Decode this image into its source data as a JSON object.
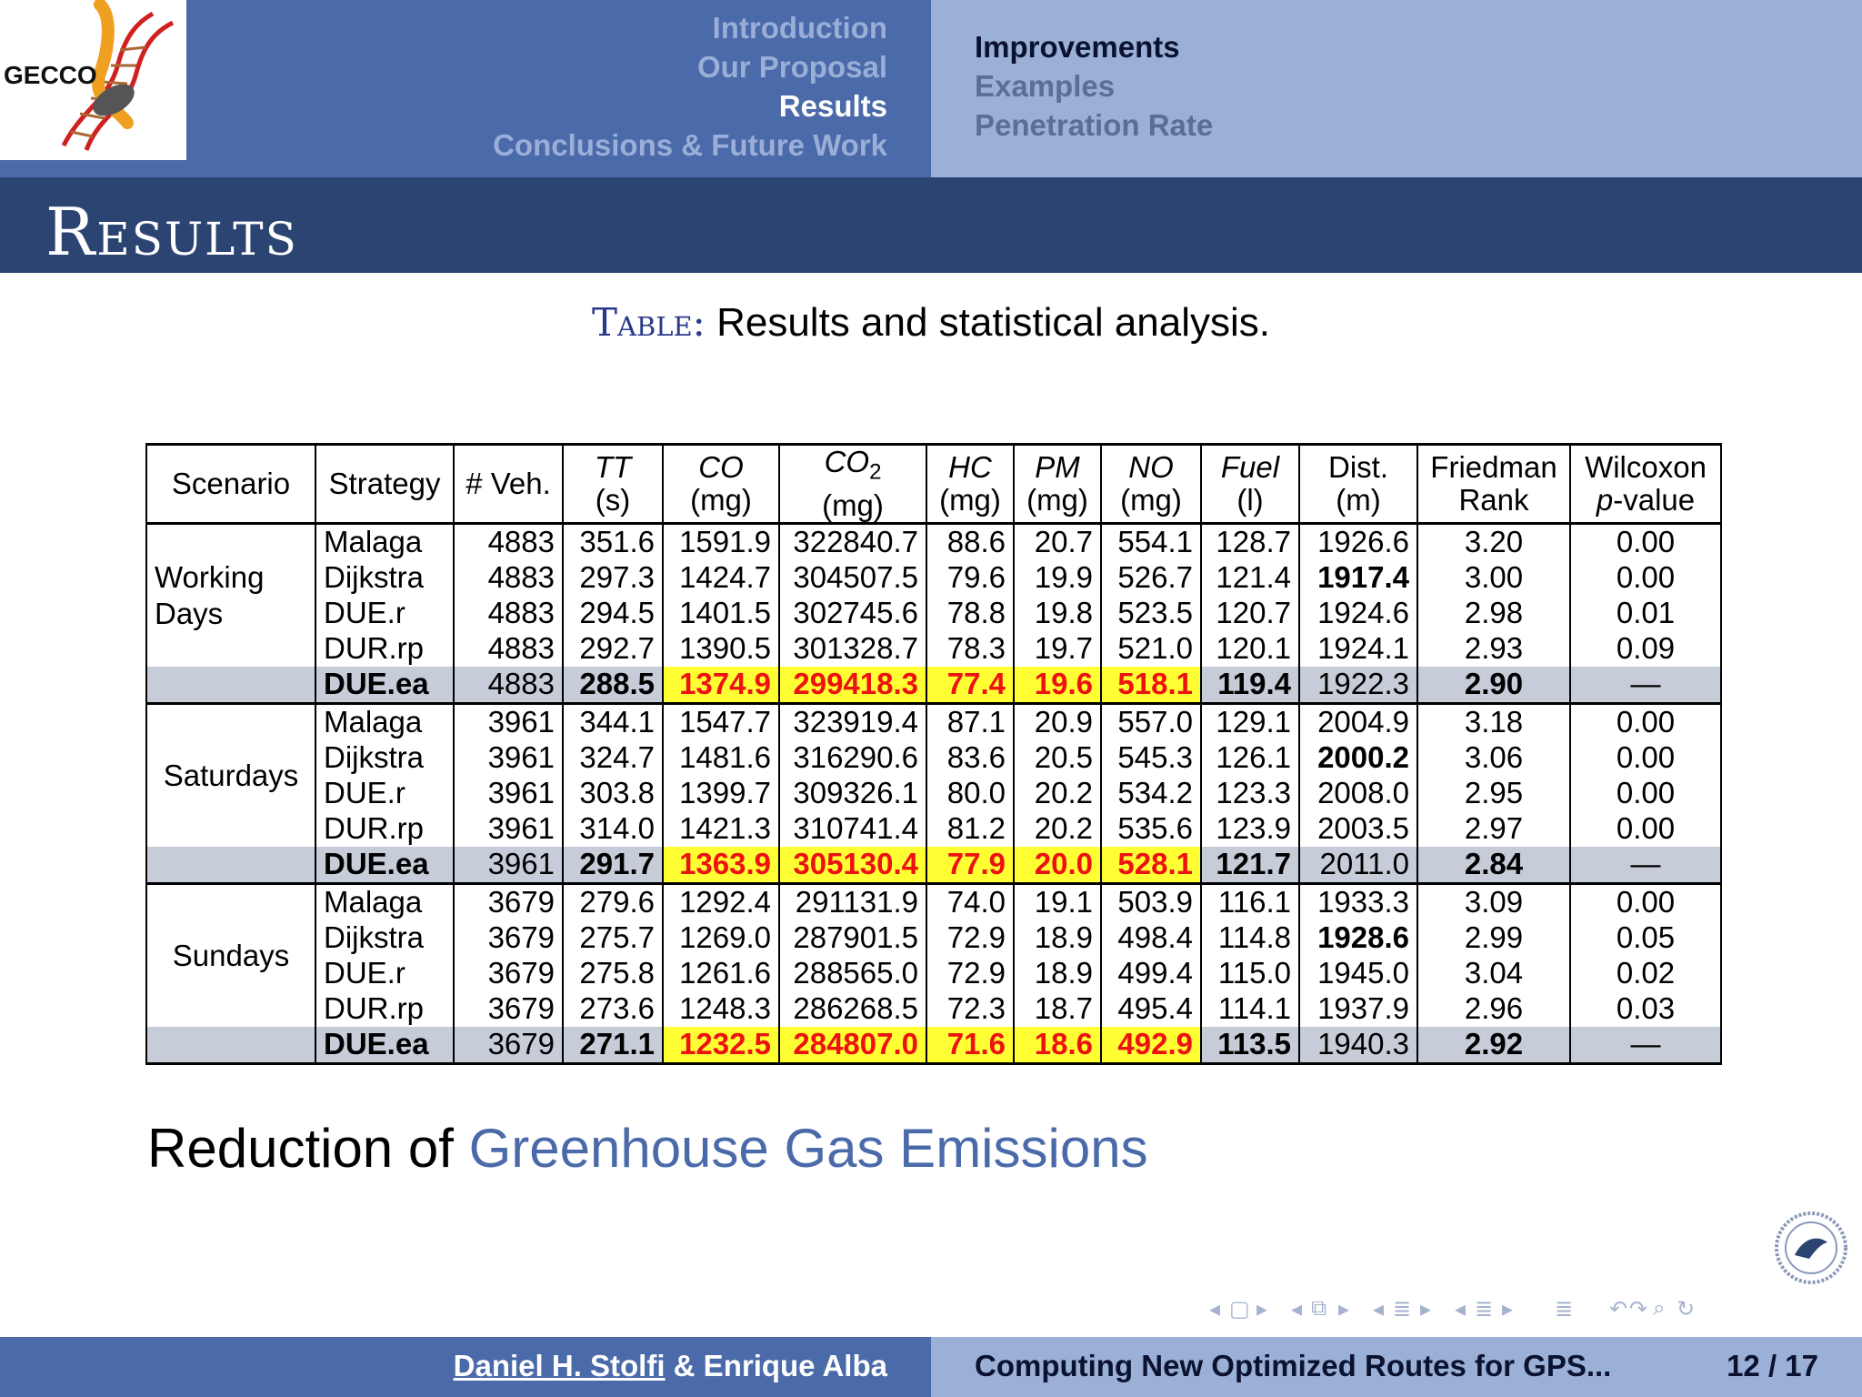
{
  "header": {
    "sections": [
      "Introduction",
      "Our Proposal",
      "Results",
      "Conclusions & Future Work"
    ],
    "active_section": "Results",
    "subsections": [
      "Improvements",
      "Examples",
      "Penetration Rate"
    ],
    "active_subsection": "Improvements",
    "logo_text": "GECCO"
  },
  "slide": {
    "title": "Results",
    "caption_label": "Table:",
    "caption_text": "Results and statistical analysis."
  },
  "table": {
    "headers": [
      {
        "line1": "Scenario",
        "line2": ""
      },
      {
        "line1": "Strategy",
        "line2": ""
      },
      {
        "line1": "# Veh.",
        "line2": ""
      },
      {
        "line1": "TT",
        "line2": "(s)"
      },
      {
        "line1": "CO",
        "line2": "(mg)"
      },
      {
        "line1": "CO",
        "line1_sub": "2",
        "line2": "(mg)"
      },
      {
        "line1": "HC",
        "line2": "(mg)"
      },
      {
        "line1": "PM",
        "line2": "(mg)"
      },
      {
        "line1": "NO",
        "line2": "(mg)"
      },
      {
        "line1": "Fuel",
        "line2": "(l)"
      },
      {
        "line1": "Dist.",
        "line2": "(m)"
      },
      {
        "line1": "Friedman",
        "line2": "Rank"
      },
      {
        "line1": "Wilcoxon",
        "line2": "p-value"
      }
    ],
    "groups": [
      {
        "scenario": "Working Days",
        "rows": [
          [
            "Malaga",
            "4883",
            "351.6",
            "1591.9",
            "322840.7",
            "88.6",
            "20.7",
            "554.1",
            "128.7",
            "1926.6",
            "3.20",
            "0.00"
          ],
          [
            "Dijkstra",
            "4883",
            "297.3",
            "1424.7",
            "304507.5",
            "79.6",
            "19.9",
            "526.7",
            "121.4",
            "1917.4",
            "3.00",
            "0.00"
          ],
          [
            "DUE.r",
            "4883",
            "294.5",
            "1401.5",
            "302745.6",
            "78.8",
            "19.8",
            "523.5",
            "120.7",
            "1924.6",
            "2.98",
            "0.01"
          ],
          [
            "DUR.rp",
            "4883",
            "292.7",
            "1390.5",
            "301328.7",
            "78.3",
            "19.7",
            "521.0",
            "120.1",
            "1924.1",
            "2.93",
            "0.09"
          ],
          [
            "DUE.ea",
            "4883",
            "288.5",
            "1374.9",
            "299418.3",
            "77.4",
            "19.6",
            "518.1",
            "119.4",
            "1922.3",
            "2.90",
            "—"
          ]
        ]
      },
      {
        "scenario": "Saturdays",
        "rows": [
          [
            "Malaga",
            "3961",
            "344.1",
            "1547.7",
            "323919.4",
            "87.1",
            "20.9",
            "557.0",
            "129.1",
            "2004.9",
            "3.18",
            "0.00"
          ],
          [
            "Dijkstra",
            "3961",
            "324.7",
            "1481.6",
            "316290.6",
            "83.6",
            "20.5",
            "545.3",
            "126.1",
            "2000.2",
            "3.06",
            "0.00"
          ],
          [
            "DUE.r",
            "3961",
            "303.8",
            "1399.7",
            "309326.1",
            "80.0",
            "20.2",
            "534.2",
            "123.3",
            "2008.0",
            "2.95",
            "0.00"
          ],
          [
            "DUR.rp",
            "3961",
            "314.0",
            "1421.3",
            "310741.4",
            "81.2",
            "20.2",
            "535.6",
            "123.9",
            "2003.5",
            "2.97",
            "0.00"
          ],
          [
            "DUE.ea",
            "3961",
            "291.7",
            "1363.9",
            "305130.4",
            "77.9",
            "20.0",
            "528.1",
            "121.7",
            "2011.0",
            "2.84",
            "—"
          ]
        ]
      },
      {
        "scenario": "Sundays",
        "rows": [
          [
            "Malaga",
            "3679",
            "279.6",
            "1292.4",
            "291131.9",
            "74.0",
            "19.1",
            "503.9",
            "116.1",
            "1933.3",
            "3.09",
            "0.00"
          ],
          [
            "Dijkstra",
            "3679",
            "275.7",
            "1269.0",
            "287901.5",
            "72.9",
            "18.9",
            "498.4",
            "114.8",
            "1928.6",
            "2.99",
            "0.05"
          ],
          [
            "DUE.r",
            "3679",
            "275.8",
            "1261.6",
            "288565.0",
            "72.9",
            "18.9",
            "499.4",
            "115.0",
            "1945.0",
            "3.04",
            "0.02"
          ],
          [
            "DUR.rp",
            "3679",
            "273.6",
            "1248.3",
            "286268.5",
            "72.3",
            "18.7",
            "495.4",
            "114.1",
            "1937.9",
            "2.96",
            "0.03"
          ],
          [
            "DUE.ea",
            "3679",
            "271.1",
            "1232.5",
            "284807.0",
            "71.6",
            "18.6",
            "492.9",
            "113.5",
            "1940.3",
            "2.92",
            "—"
          ]
        ]
      }
    ],
    "colors": {
      "highlight_bg": "#ffff33",
      "highlight_text": "#ee1111",
      "best_row_bg": "#c6ccd8"
    }
  },
  "bottom": {
    "text_black": "Reduction of ",
    "text_blue": "Greenhouse Gas Emissions"
  },
  "footer": {
    "author1": "Daniel H. Stolfi",
    "author_sep": " & Enrique Alba",
    "title": "Computing New Optimized Routes for GPS...",
    "page": "12 / 17"
  },
  "theme": {
    "primary": "#4a6aa9",
    "secondary": "#9bb0d6",
    "dark": "#2c4472"
  }
}
